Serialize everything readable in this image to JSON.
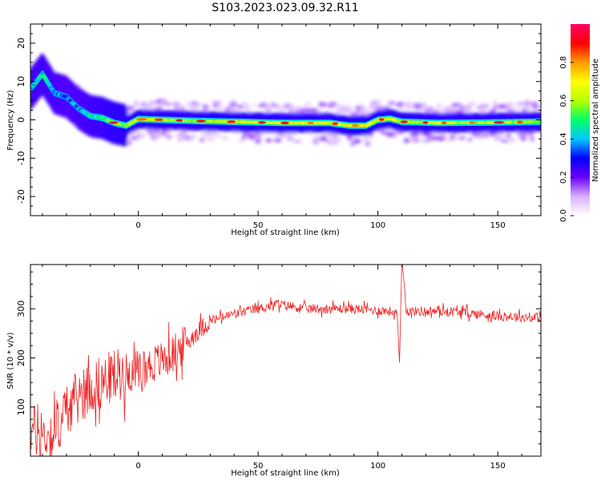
{
  "title": "S103.2023.023.09.32.R11",
  "chart_data": [
    {
      "type": "heatmap",
      "xlabel": "Height of straight line (km)",
      "ylabel": "Frequency (Hz)",
      "xlim": [
        -45,
        168
      ],
      "ylim": [
        -25,
        25
      ],
      "x_ticks": [
        0,
        50,
        100,
        150
      ],
      "y_ticks": [
        -20,
        -10,
        0,
        10,
        20
      ],
      "colorbar": {
        "label": "Normalized spectral amplitude",
        "range": [
          0,
          1
        ],
        "ticks": [
          0.0,
          0.2,
          0.4,
          0.6,
          0.8
        ],
        "colormap": [
          "#ffffff",
          "#d8b0ff",
          "#6a00ff",
          "#0000ff",
          "#00c8ff",
          "#00ff66",
          "#b8ff00",
          "#ffff00",
          "#ff9900",
          "#ff0000",
          "#ff0066"
        ]
      },
      "ridge": [
        {
          "x": -45,
          "f": 8.0,
          "a": 0.55
        },
        {
          "x": -40,
          "f": 12.0,
          "a": 0.6
        },
        {
          "x": -35,
          "f": 7.0,
          "a": 0.5
        },
        {
          "x": -30,
          "f": 6.0,
          "a": 0.45
        },
        {
          "x": -25,
          "f": 3.0,
          "a": 0.5
        },
        {
          "x": -20,
          "f": 1.0,
          "a": 0.6
        },
        {
          "x": -15,
          "f": 0.5,
          "a": 0.65
        },
        {
          "x": -10,
          "f": -0.8,
          "a": 0.75
        },
        {
          "x": -5,
          "f": -1.5,
          "a": 0.8
        },
        {
          "x": 0,
          "f": 0.2,
          "a": 0.85
        },
        {
          "x": 10,
          "f": 0.0,
          "a": 0.8
        },
        {
          "x": 25,
          "f": -0.3,
          "a": 0.8
        },
        {
          "x": 40,
          "f": -0.5,
          "a": 0.85
        },
        {
          "x": 60,
          "f": -0.8,
          "a": 0.9
        },
        {
          "x": 80,
          "f": -0.8,
          "a": 0.9
        },
        {
          "x": 88,
          "f": -1.5,
          "a": 0.9
        },
        {
          "x": 95,
          "f": -1.5,
          "a": 0.95
        },
        {
          "x": 100,
          "f": 0.0,
          "a": 0.85
        },
        {
          "x": 105,
          "f": 0.3,
          "a": 0.9
        },
        {
          "x": 110,
          "f": -0.5,
          "a": 0.85
        },
        {
          "x": 125,
          "f": -0.8,
          "a": 0.85
        },
        {
          "x": 145,
          "f": -0.7,
          "a": 0.8
        },
        {
          "x": 168,
          "f": -0.5,
          "a": 0.75
        }
      ]
    },
    {
      "type": "line",
      "xlabel": "Height of straight line (km)",
      "ylabel": "SNR (10 * v/v)",
      "xlim": [
        -45,
        168
      ],
      "ylim": [
        0,
        390
      ],
      "x_ticks": [
        0,
        50,
        100,
        150
      ],
      "y_ticks": [
        100,
        200,
        300
      ],
      "line_color": "#ee2222",
      "envelope": [
        {
          "x": -45,
          "snr": 55
        },
        {
          "x": -40,
          "snr": 40
        },
        {
          "x": -35,
          "snr": 45
        },
        {
          "x": -30,
          "snr": 95
        },
        {
          "x": -25,
          "snr": 120
        },
        {
          "x": -20,
          "snr": 140
        },
        {
          "x": -15,
          "snr": 150
        },
        {
          "x": -10,
          "snr": 165
        },
        {
          "x": -5,
          "snr": 170
        },
        {
          "x": 0,
          "snr": 175
        },
        {
          "x": 5,
          "snr": 185
        },
        {
          "x": 10,
          "snr": 195
        },
        {
          "x": 15,
          "snr": 210
        },
        {
          "x": 20,
          "snr": 230
        },
        {
          "x": 25,
          "snr": 255
        },
        {
          "x": 30,
          "snr": 275
        },
        {
          "x": 40,
          "snr": 290
        },
        {
          "x": 50,
          "snr": 300
        },
        {
          "x": 58,
          "snr": 310
        },
        {
          "x": 70,
          "snr": 300
        },
        {
          "x": 90,
          "snr": 300
        },
        {
          "x": 105,
          "snr": 295
        },
        {
          "x": 108,
          "snr": 290
        },
        {
          "x": 109,
          "snr": 190
        },
        {
          "x": 110,
          "snr": 400
        },
        {
          "x": 112,
          "snr": 295
        },
        {
          "x": 130,
          "snr": 295
        },
        {
          "x": 150,
          "snr": 285
        },
        {
          "x": 168,
          "snr": 282
        }
      ]
    }
  ]
}
